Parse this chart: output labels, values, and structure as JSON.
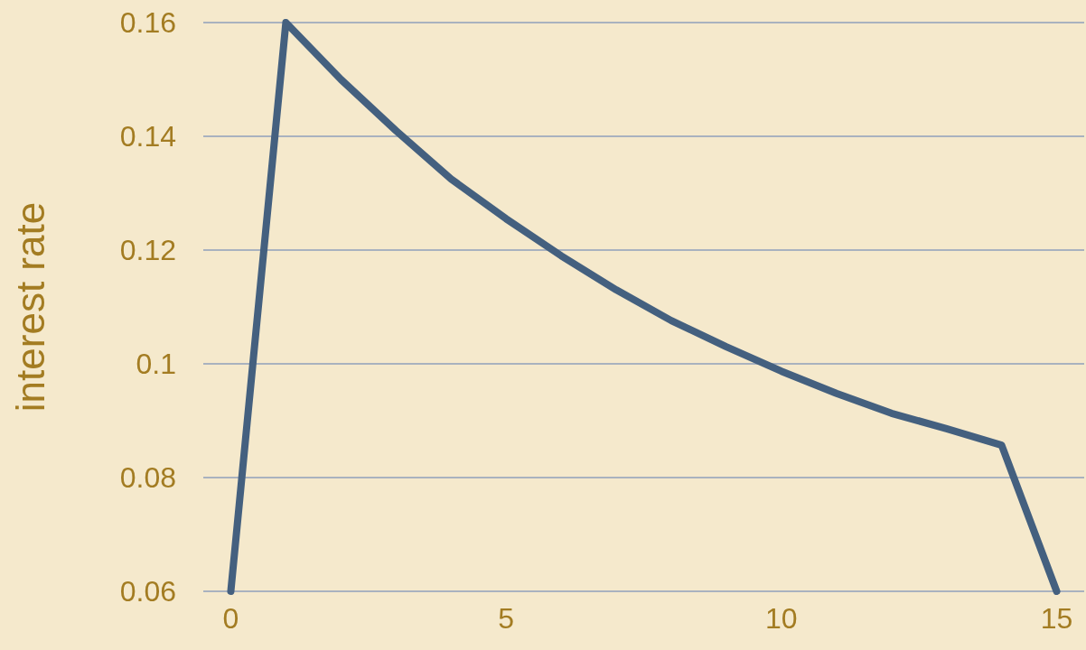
{
  "chart_data": {
    "type": "line",
    "ylabel": "interest rate",
    "x": [
      0,
      1,
      2,
      3,
      4,
      5,
      6,
      7,
      8,
      9,
      10,
      11,
      12,
      13,
      14,
      15
    ],
    "series": [
      {
        "color": "#44607f",
        "values": [
          0.06,
          0.16,
          0.15,
          0.141,
          0.1325,
          0.1255,
          0.119,
          0.113,
          0.1076,
          0.103,
          0.0987,
          0.0948,
          0.0913,
          0.0886,
          0.0857,
          0.06
        ]
      }
    ],
    "xlim": [
      -0.5,
      15.5
    ],
    "xticks": [
      0,
      5,
      10,
      15
    ],
    "ylim": [
      0.06,
      0.16
    ],
    "yticks": [
      0.06,
      0.08,
      0.1,
      0.12,
      0.14,
      0.16
    ],
    "grid": "y",
    "line_style": "solid"
  }
}
